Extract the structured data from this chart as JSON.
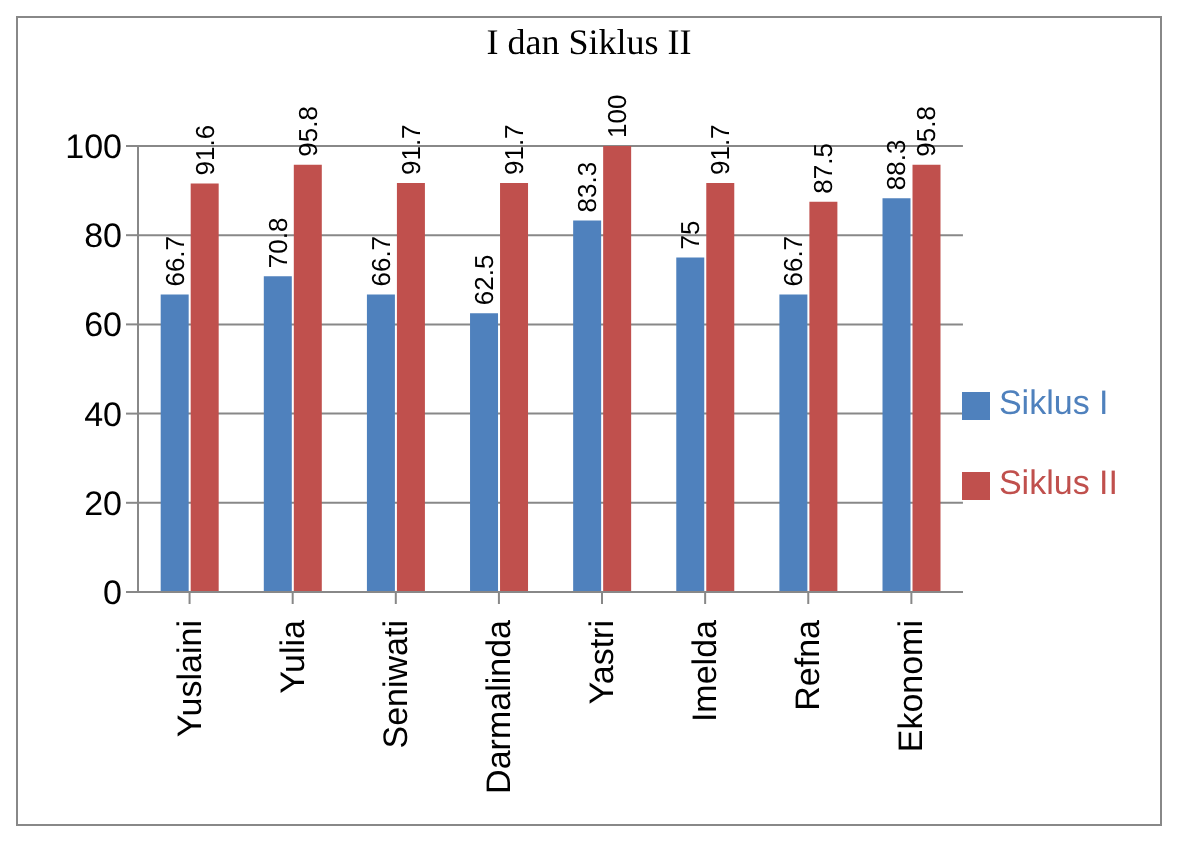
{
  "chart_data": {
    "type": "bar",
    "title": "I dan Siklus II",
    "categories": [
      "Yuslaini",
      "Yulia",
      "Seniwati",
      "Darmalinda",
      "Yastri",
      "Imelda",
      "Refna",
      "Ekonomi"
    ],
    "series": [
      {
        "name": "Siklus I",
        "color": "#4f81bd",
        "values": [
          66.7,
          70.8,
          66.7,
          62.5,
          83.3,
          75,
          66.7,
          88.3
        ]
      },
      {
        "name": "Siklus II",
        "color": "#c0504d",
        "values": [
          91.6,
          95.8,
          91.7,
          91.7,
          100,
          91.7,
          87.5,
          95.8
        ]
      }
    ],
    "ylim": [
      0,
      100
    ],
    "yticks": [
      0,
      20,
      40,
      60,
      80,
      100
    ],
    "grid": "y",
    "legend": "right",
    "data_labels": true
  }
}
